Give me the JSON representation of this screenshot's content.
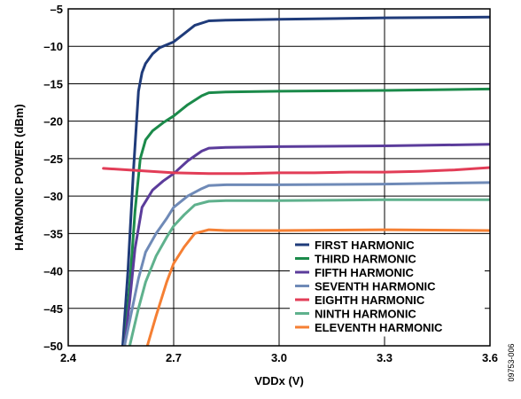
{
  "chart_data": {
    "type": "line",
    "xlabel": "VDDx (V)",
    "ylabel": "HARMONIC POWER (dBm)",
    "xlim": [
      2.4,
      3.6
    ],
    "ylim": [
      -50,
      -5
    ],
    "x_ticks": [
      "2.4",
      "2.7",
      "3.0",
      "3.3",
      "3.6"
    ],
    "x_tick_values": [
      2.4,
      2.7,
      3.0,
      3.3,
      3.6
    ],
    "y_ticks": [
      "–5",
      "–10",
      "–15",
      "–20",
      "–25",
      "–30",
      "–35",
      "–40",
      "–45",
      "–50"
    ],
    "y_tick_values": [
      -5,
      -10,
      -15,
      -20,
      -25,
      -30,
      -35,
      -40,
      -45,
      -50
    ],
    "grid": true,
    "legend_position": "bottom-right",
    "figure_id": "09753-006",
    "series": [
      {
        "name": "FIRST HARMONIC",
        "color": "#1f3b7a",
        "x": [
          2.555,
          2.57,
          2.585,
          2.6,
          2.61,
          2.62,
          2.64,
          2.66,
          2.7,
          2.73,
          2.76,
          2.8,
          2.85,
          3.0,
          3.3,
          3.6
        ],
        "y": [
          -50,
          -40,
          -27,
          -16,
          -13.5,
          -12.3,
          -11.0,
          -10.2,
          -9.4,
          -8.3,
          -7.2,
          -6.6,
          -6.5,
          -6.4,
          -6.2,
          -6.1
        ]
      },
      {
        "name": "THIRD HARMONIC",
        "color": "#1b8a4a",
        "x": [
          2.56,
          2.575,
          2.59,
          2.605,
          2.62,
          2.64,
          2.67,
          2.7,
          2.74,
          2.78,
          2.8,
          2.85,
          3.0,
          3.3,
          3.6
        ],
        "y": [
          -50,
          -42,
          -32,
          -25,
          -22.5,
          -21.3,
          -20.2,
          -19.3,
          -17.8,
          -16.6,
          -16.2,
          -16.1,
          -16.0,
          -15.9,
          -15.7
        ]
      },
      {
        "name": "FIFTH HARMONIC",
        "color": "#5b3c9b",
        "x": [
          2.56,
          2.575,
          2.59,
          2.61,
          2.64,
          2.67,
          2.7,
          2.74,
          2.78,
          2.8,
          2.85,
          3.0,
          3.3,
          3.6
        ],
        "y": [
          -50,
          -44,
          -37,
          -31.5,
          -29.2,
          -28.0,
          -27.0,
          -25.3,
          -24.0,
          -23.6,
          -23.5,
          -23.4,
          -23.3,
          -23.1
        ]
      },
      {
        "name": "SEVENTH HARMONIC",
        "color": "#6f8ab7",
        "x": [
          2.56,
          2.58,
          2.6,
          2.62,
          2.65,
          2.68,
          2.7,
          2.74,
          2.78,
          2.8,
          2.85,
          3.0,
          3.3,
          3.6
        ],
        "y": [
          -50,
          -45.5,
          -41,
          -37.5,
          -35.0,
          -33.0,
          -31.5,
          -30.0,
          -29.0,
          -28.6,
          -28.5,
          -28.5,
          -28.4,
          -28.2
        ]
      },
      {
        "name": "EIGHTH HARMONIC",
        "color": "#e23d57",
        "x": [
          2.5,
          2.6,
          2.7,
          2.8,
          2.9,
          3.0,
          3.1,
          3.2,
          3.3,
          3.4,
          3.5,
          3.6
        ],
        "y": [
          -26.3,
          -26.6,
          -26.9,
          -27.0,
          -27.0,
          -26.9,
          -26.9,
          -26.8,
          -26.8,
          -26.7,
          -26.5,
          -26.2
        ]
      },
      {
        "name": "NINTH HARMONIC",
        "color": "#5fb18d",
        "x": [
          2.575,
          2.6,
          2.62,
          2.65,
          2.68,
          2.7,
          2.73,
          2.76,
          2.8,
          2.85,
          3.0,
          3.3,
          3.6
        ],
        "y": [
          -50,
          -45,
          -41.5,
          -38.0,
          -35.5,
          -34.0,
          -32.5,
          -31.2,
          -30.7,
          -30.6,
          -30.6,
          -30.5,
          -30.5
        ]
      },
      {
        "name": "ELEVENTH HARMONIC",
        "color": "#f57f33",
        "x": [
          2.625,
          2.65,
          2.68,
          2.7,
          2.73,
          2.76,
          2.8,
          2.85,
          3.0,
          3.3,
          3.6
        ],
        "y": [
          -50,
          -46.0,
          -41.5,
          -39.0,
          -36.8,
          -35.0,
          -34.5,
          -34.6,
          -34.6,
          -34.5,
          -34.6
        ]
      }
    ]
  }
}
